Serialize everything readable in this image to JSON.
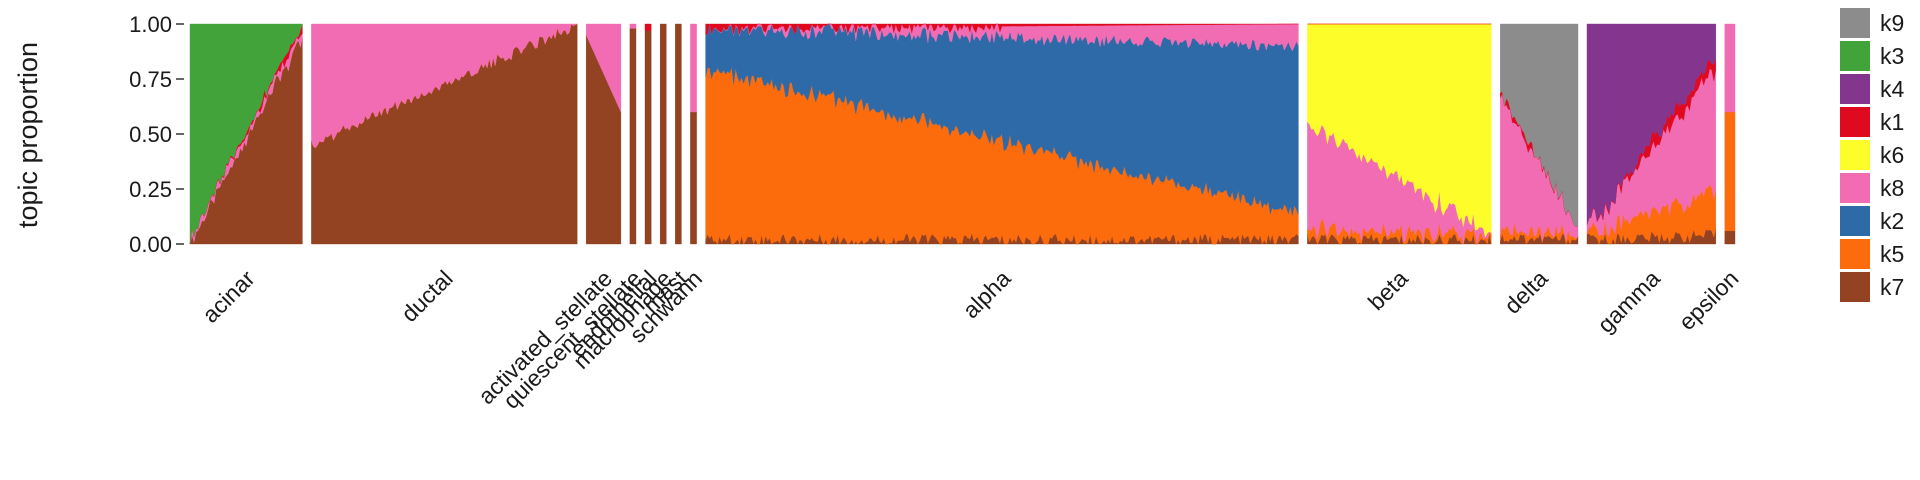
{
  "chart_data": {
    "type": "bar",
    "stacked": true,
    "ylabel": "topic proportion",
    "ylim": [
      0,
      1
    ],
    "yticks": [
      "0.00",
      "0.25",
      "0.50",
      "0.75",
      "1.00"
    ],
    "legend_position": "right",
    "legend": [
      {
        "key": "k9",
        "color": "#8C8C8C"
      },
      {
        "key": "k3",
        "color": "#41A33A"
      },
      {
        "key": "k4",
        "color": "#84368E"
      },
      {
        "key": "k1",
        "color": "#DF0A1F"
      },
      {
        "key": "k6",
        "color": "#FDFD29"
      },
      {
        "key": "k8",
        "color": "#F26CB4"
      },
      {
        "key": "k2",
        "color": "#2E6AA8"
      },
      {
        "key": "k5",
        "color": "#FC6B0C"
      },
      {
        "key": "k7",
        "color": "#934321"
      }
    ],
    "groups": [
      {
        "name": "acinar",
        "n": 110,
        "start": {
          "k7": 0.0,
          "k8": 0.02,
          "k1": 0.0,
          "k3": 0.98
        },
        "end": {
          "k7": 0.95,
          "k8": 0.03,
          "k1": 0.02,
          "k3": 0.0
        }
      },
      {
        "name": "ductal",
        "n": 260,
        "start": {
          "k7": 0.45,
          "k5": 0.0,
          "k8": 0.55
        },
        "end": {
          "k7": 1.0,
          "k5": 0.0,
          "k8": 0.0
        }
      },
      {
        "name": "activated_stellate",
        "n": 34,
        "start": {
          "k7": 0.95,
          "k8": 0.05
        },
        "end": {
          "k7": 0.6,
          "k8": 0.4
        }
      },
      {
        "name": "quiescent_stellate",
        "n": 6,
        "start": {
          "k7": 0.98,
          "k8": 0.02
        },
        "end": {
          "k7": 0.98,
          "k8": 0.02
        }
      },
      {
        "name": "endothelial",
        "n": 6,
        "start": {
          "k7": 0.97,
          "k1": 0.03
        },
        "end": {
          "k7": 0.97,
          "k1": 0.03
        }
      },
      {
        "name": "macrophage",
        "n": 6,
        "start": {
          "k7": 1.0
        },
        "end": {
          "k7": 1.0
        }
      },
      {
        "name": "mast",
        "n": 6,
        "start": {
          "k7": 1.0
        },
        "end": {
          "k7": 1.0
        }
      },
      {
        "name": "schwann",
        "n": 6,
        "start": {
          "k7": 0.6,
          "k8": 0.4
        },
        "end": {
          "k7": 0.6,
          "k8": 0.4
        }
      },
      {
        "name": "alpha",
        "n": 580,
        "start": {
          "k7": 0.02,
          "k5": 0.78,
          "k2": 0.18,
          "k8": 0.0,
          "k1": 0.02
        },
        "end": {
          "k7": 0.02,
          "k5": 0.12,
          "k2": 0.76,
          "k8": 0.1,
          "k1": 0.0
        }
      },
      {
        "name": "beta",
        "n": 180,
        "start": {
          "k7": 0.02,
          "k5": 0.05,
          "k8": 0.48,
          "k6": 0.45,
          "k1": 0.0
        },
        "end": {
          "k7": 0.02,
          "k5": 0.02,
          "k8": 0.0,
          "k6": 0.96,
          "k1": 0.0
        }
      },
      {
        "name": "delta",
        "n": 76,
        "start": {
          "k7": 0.03,
          "k5": 0.05,
          "k8": 0.6,
          "k1": 0.02,
          "k9": 0.3
        },
        "end": {
          "k7": 0.02,
          "k5": 0.02,
          "k8": 0.02,
          "k1": 0.0,
          "k9": 0.94
        }
      },
      {
        "name": "gamma",
        "n": 126,
        "start": {
          "k7": 0.02,
          "k5": 0.03,
          "k8": 0.02,
          "k1": 0.0,
          "k4": 0.93
        },
        "end": {
          "k7": 0.04,
          "k5": 0.2,
          "k8": 0.55,
          "k1": 0.06,
          "k4": 0.15
        }
      },
      {
        "name": "epsilon",
        "n": 10,
        "start": {
          "k7": 0.06,
          "k5": 0.54,
          "k8": 0.4
        },
        "end": {
          "k7": 0.06,
          "k5": 0.54,
          "k8": 0.4
        }
      }
    ],
    "group_labels": [
      "acinar",
      "ductal",
      "activated_stellate",
      "quiescent_stellate",
      "endothelial",
      "macrophage",
      "mast",
      "schwann",
      "alpha",
      "beta",
      "delta",
      "gamma",
      "epsilon"
    ]
  }
}
